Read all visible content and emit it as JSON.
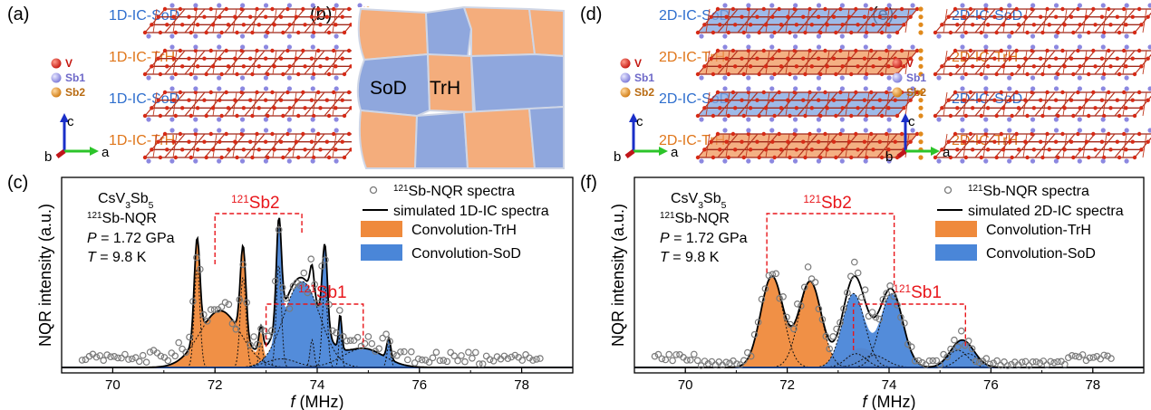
{
  "panels": {
    "a": {
      "tag": "(a)",
      "layers": [
        "1D-IC-SoD",
        "1D-IC-TrH",
        "1D-IC-SoD",
        "1D-IC-TrH"
      ]
    },
    "b": {
      "tag": "(b)",
      "sod": "SoD",
      "trh": "TrH"
    },
    "c": {
      "tag": "(c)"
    },
    "d": {
      "tag": "(d)",
      "layers": [
        "2D-IC-SoD",
        "2D-IC-TrH",
        "2D-IC-SoD",
        "2D-IC-TrH"
      ]
    },
    "e": {
      "tag": "(e)",
      "layers": [
        "2D-IC-SoD",
        "2D-IC-TrH",
        "2D-IC-SoD",
        "2D-IC-TrH"
      ]
    },
    "f": {
      "tag": "(f)"
    }
  },
  "atoms": {
    "v": "V",
    "sb1": "Sb1",
    "sb2": "Sb2"
  },
  "axes3d": {
    "a": "a",
    "b": "b",
    "c": "c"
  },
  "colors": {
    "sod": "#2f6fce",
    "trh": "#e0771c",
    "sod_fill": "#4a86d8",
    "trh_fill": "#ef8a3c",
    "annot": "#e8161b"
  },
  "chart_data": [
    {
      "panel": "c",
      "type": "line",
      "xlabel": "f (MHz)",
      "ylabel": "NQR intensity (a.u.)",
      "xlim": [
        69,
        79
      ],
      "xticks": [
        "70",
        "72",
        "74",
        "76",
        "78"
      ],
      "sample": {
        "line1": "CsV3Sb5",
        "line2": "121Sb-NQR",
        "pressure": "P = 1.72 GPa",
        "temperature": "T = 9.8 K"
      },
      "legend": [
        "121Sb-NQR spectra",
        "simulated 1D-IC spectra",
        "Convolution-TrH",
        "Convolution-SoD"
      ],
      "annotations": {
        "sb2": "121Sb2",
        "sb1": "121Sb1"
      }
    },
    {
      "panel": "f",
      "type": "line",
      "xlabel": "f (MHz)",
      "ylabel": "NQR intensity (a.u.)",
      "xlim": [
        69,
        79
      ],
      "xticks": [
        "70",
        "72",
        "74",
        "76",
        "78"
      ],
      "sample": {
        "line1": "CsV3Sb5",
        "line2": "121Sb-NQR",
        "pressure": "P = 1.72 GPa",
        "temperature": "T = 9.8 K"
      },
      "legend": [
        "121Sb-NQR spectra",
        "simulated 2D-IC spectra",
        "Convolution-TrH",
        "Convolution-SoD"
      ],
      "annotations": {
        "sb2": "121Sb2",
        "sb1": "121Sb1"
      }
    }
  ]
}
